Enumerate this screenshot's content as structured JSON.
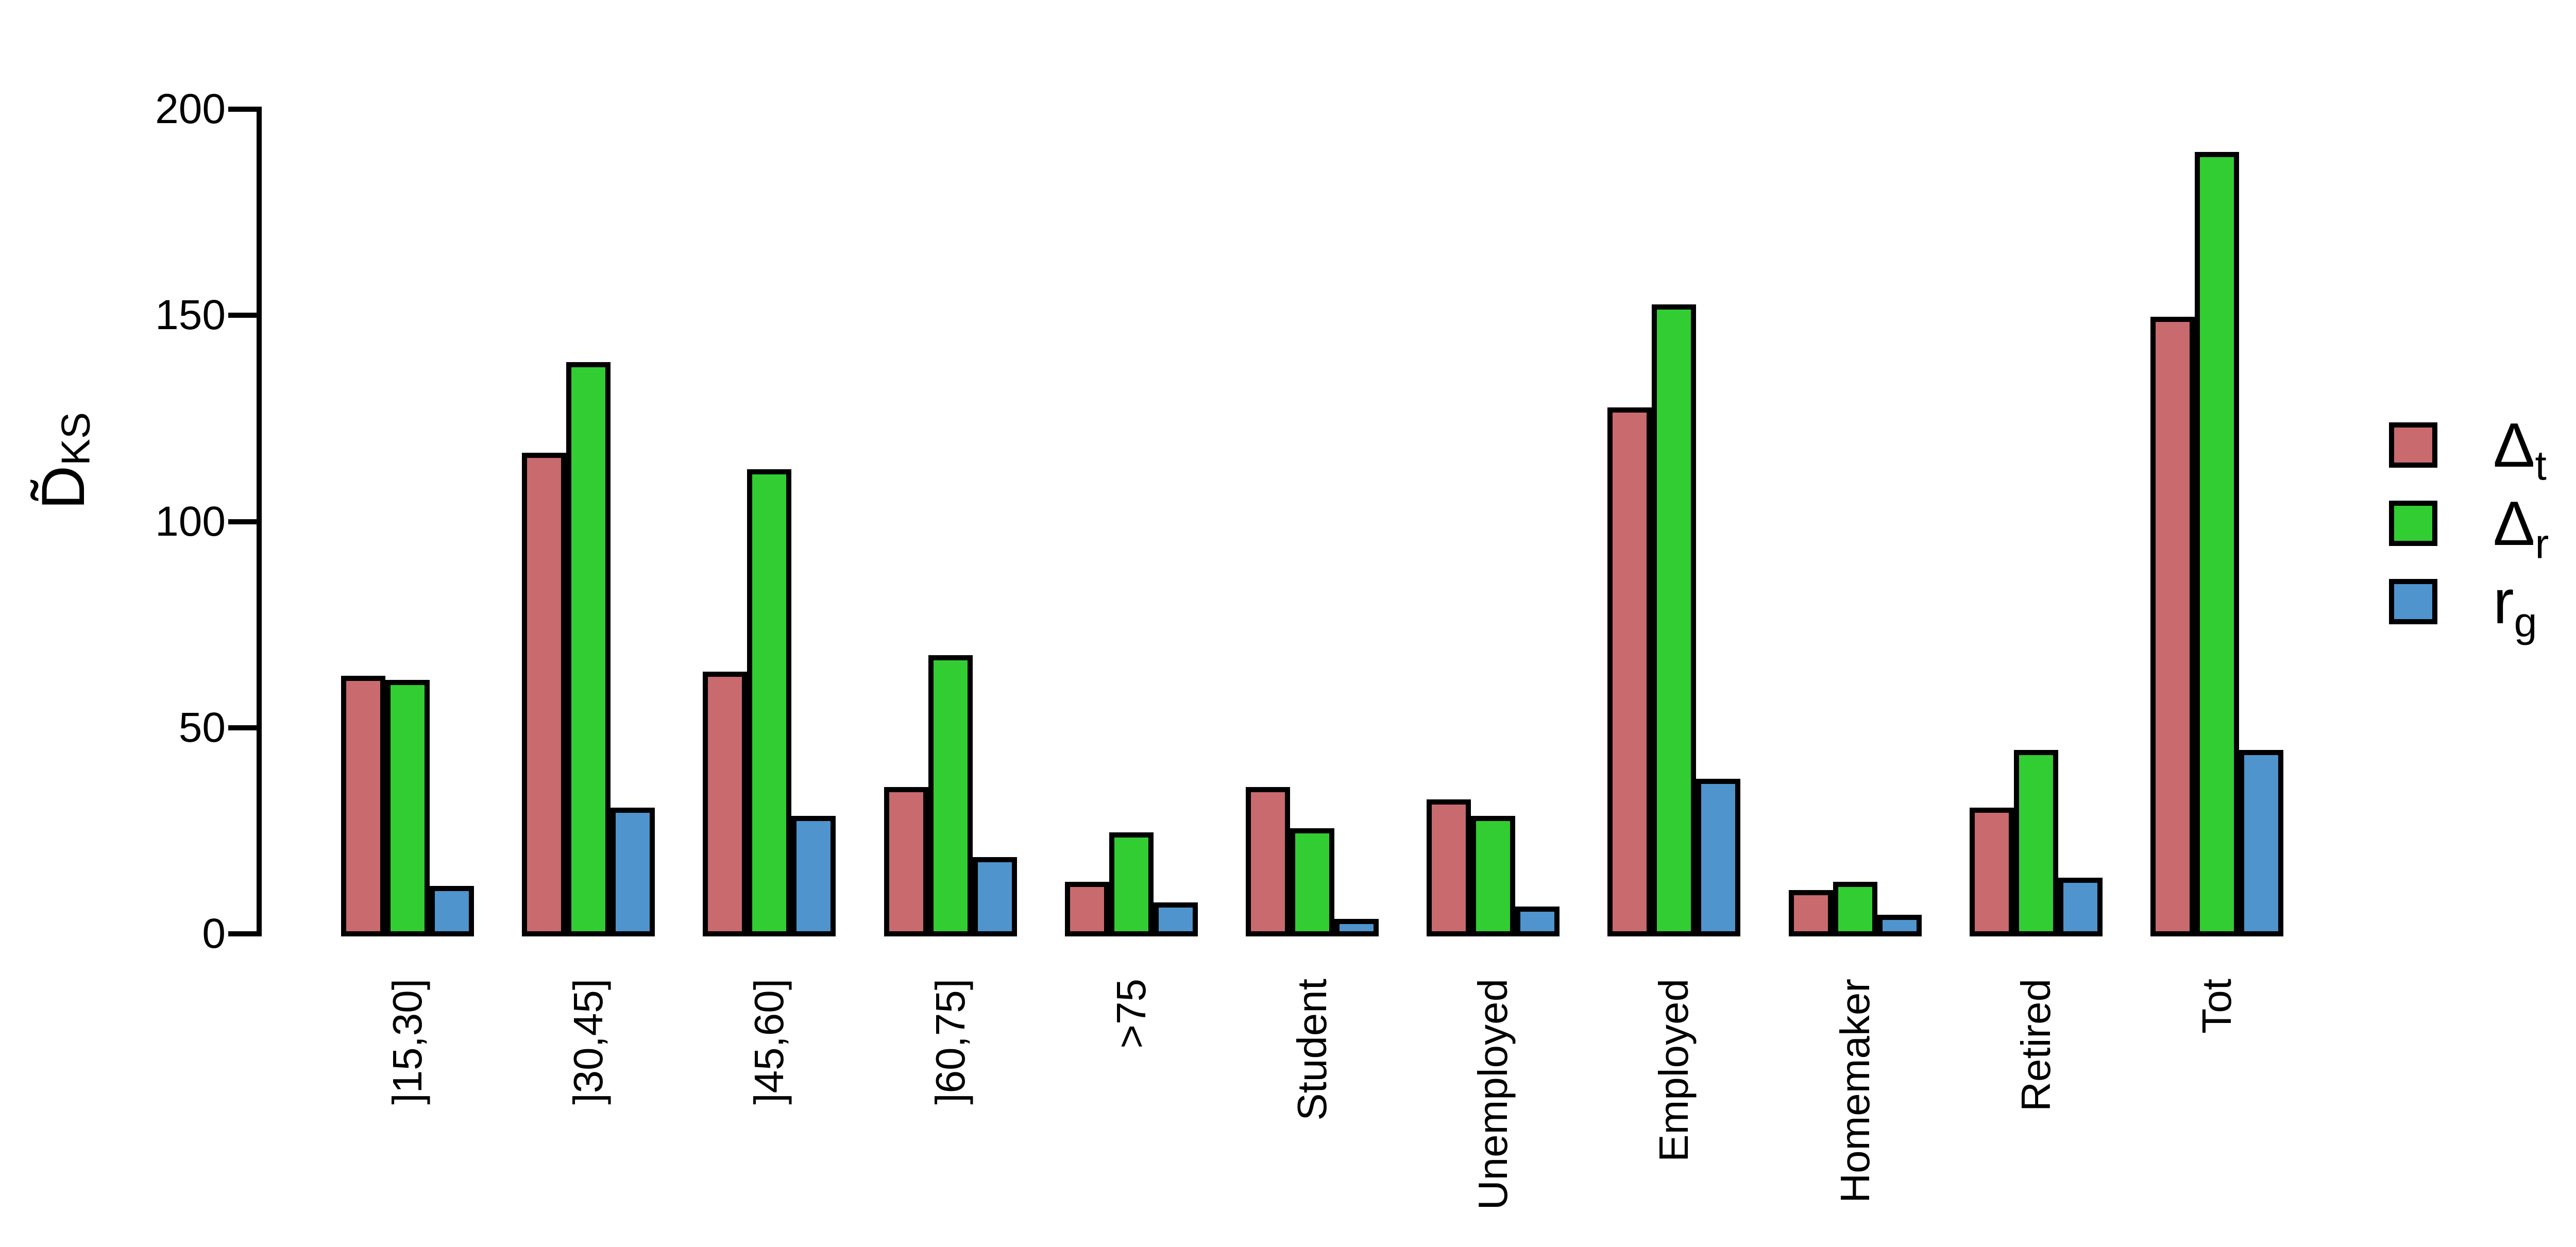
{
  "chart_data": {
    "type": "bar",
    "title": "",
    "ylabel_main": "D̃",
    "ylabel_sub": "KS",
    "xlabel": "",
    "ylim": [
      0,
      200
    ],
    "yticks": [
      0,
      50,
      100,
      150,
      200
    ],
    "grid": false,
    "legend_position": "right-middle",
    "categories": [
      "]15,30]",
      "]30,45]",
      "]45,60]",
      "]60,75]",
      ">75",
      "Student",
      "Unemployed",
      "Employed",
      "Homemaker",
      "Retired",
      "Tot"
    ],
    "series": [
      {
        "name_main": "Δ",
        "name_sub": "t",
        "color": "#C86A6E",
        "values": [
          62,
          116,
          63,
          35,
          12,
          35,
          32,
          127,
          10,
          30,
          149
        ]
      },
      {
        "name_main": "Δ",
        "name_sub": "r",
        "color": "#32CD32",
        "values": [
          61,
          138,
          112,
          67,
          24,
          25,
          28,
          152,
          12,
          44,
          189
        ]
      },
      {
        "name_main": "r",
        "name_sub": "g",
        "color": "#4F94CD",
        "values": [
          11,
          30,
          28,
          18,
          7,
          3,
          6,
          37,
          4,
          13,
          44
        ]
      }
    ],
    "bar_outline_color": "#000000",
    "axis_color": "#000000",
    "background_color": "#ffffff"
  }
}
